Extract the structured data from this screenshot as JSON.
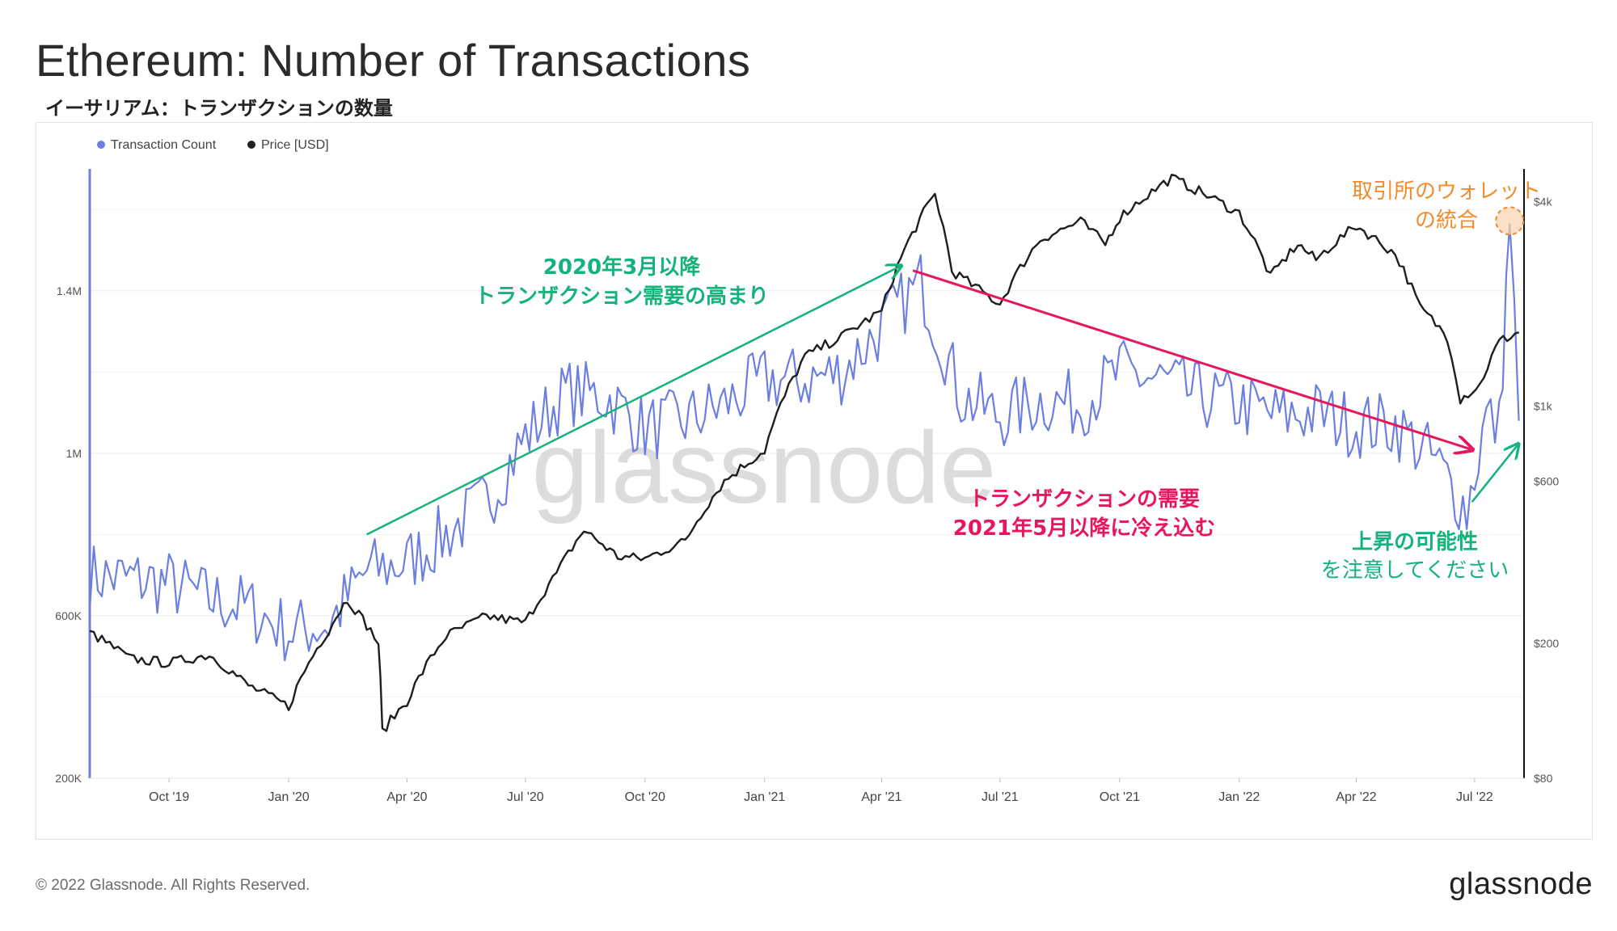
{
  "header": {
    "title": "Ethereum: Number of Transactions",
    "subtitle": "イーサリアム：トランザクションの数量"
  },
  "footer": {
    "copyright": "© 2022 Glassnode. All Rights Reserved.",
    "logo": "glassnode"
  },
  "watermark": "glassnode",
  "colors": {
    "transaction_series": "#6b7fe0",
    "price_series": "#1e1e1e",
    "uptrend_annotation": "#14b37a",
    "downtrend_annotation": "#e8175d",
    "consolidation_annotation": "#f28a2e"
  },
  "chart_data": {
    "type": "line",
    "title": "Ethereum: Number of Transactions",
    "legend": {
      "placement": "top-left",
      "entries": [
        "Transaction Count",
        "Price [USD]"
      ]
    },
    "x_axis": {
      "range": [
        "2019-08-01",
        "2022-08-08"
      ],
      "tick_labels": [
        "Oct '19",
        "Jan '20",
        "Apr '20",
        "Jul '20",
        "Oct '20",
        "Jan '21",
        "Apr '21",
        "Jul '21",
        "Oct '21",
        "Jan '22",
        "Apr '22",
        "Jul '22"
      ],
      "tick_dates": [
        "2019-10-01",
        "2020-01-01",
        "2020-04-01",
        "2020-07-01",
        "2020-10-01",
        "2021-01-01",
        "2021-04-01",
        "2021-07-01",
        "2021-10-01",
        "2022-01-01",
        "2022-04-01",
        "2022-07-01"
      ]
    },
    "y_left": {
      "scale": "linear",
      "range": [
        200000,
        1700000
      ],
      "ticks": [
        200000,
        600000,
        1000000,
        1400000
      ],
      "tick_labels": [
        "200K",
        "600K",
        "1M",
        "1.4M"
      ]
    },
    "y_right": {
      "scale": "log",
      "range": [
        80,
        5000
      ],
      "ticks": [
        80,
        200,
        600,
        1000,
        4000
      ],
      "tick_labels": [
        "$80",
        "$200",
        "$600",
        "$1k",
        "$4k"
      ]
    },
    "grid": true,
    "series": [
      {
        "name": "Transaction Count",
        "axis": "left",
        "points": [
          [
            "2019-08-01",
            700000
          ],
          [
            "2019-09-01",
            690000
          ],
          [
            "2019-10-01",
            680000
          ],
          [
            "2019-11-01",
            640000
          ],
          [
            "2019-12-01",
            620000
          ],
          [
            "2020-01-01",
            560000
          ],
          [
            "2020-02-01",
            580000
          ],
          [
            "2020-03-01",
            710000
          ],
          [
            "2020-04-01",
            730000
          ],
          [
            "2020-05-01",
            800000
          ],
          [
            "2020-06-01",
            880000
          ],
          [
            "2020-07-01",
            1040000
          ],
          [
            "2020-08-01",
            1150000
          ],
          [
            "2020-09-01",
            1140000
          ],
          [
            "2020-10-01",
            1060000
          ],
          [
            "2020-11-01",
            1080000
          ],
          [
            "2020-12-01",
            1120000
          ],
          [
            "2021-01-01",
            1180000
          ],
          [
            "2021-02-01",
            1180000
          ],
          [
            "2021-03-01",
            1200000
          ],
          [
            "2021-04-01",
            1310000
          ],
          [
            "2021-05-01",
            1420000
          ],
          [
            "2021-06-01",
            1140000
          ],
          [
            "2021-07-01",
            1090000
          ],
          [
            "2021-08-01",
            1130000
          ],
          [
            "2021-09-01",
            1120000
          ],
          [
            "2021-10-01",
            1200000
          ],
          [
            "2021-11-01",
            1180000
          ],
          [
            "2021-12-01",
            1140000
          ],
          [
            "2022-01-01",
            1120000
          ],
          [
            "2022-02-01",
            1090000
          ],
          [
            "2022-03-01",
            1100000
          ],
          [
            "2022-04-01",
            1070000
          ],
          [
            "2022-05-01",
            1070000
          ],
          [
            "2022-06-01",
            980000
          ],
          [
            "2022-06-25",
            860000
          ],
          [
            "2022-07-10",
            1090000
          ],
          [
            "2022-07-20",
            1060000
          ],
          [
            "2022-07-28",
            1580000
          ],
          [
            "2022-08-04",
            1080000
          ]
        ]
      },
      {
        "name": "Price [USD]",
        "axis": "right",
        "points": [
          [
            "2019-08-01",
            215
          ],
          [
            "2019-09-01",
            180
          ],
          [
            "2019-10-01",
            175
          ],
          [
            "2019-11-01",
            185
          ],
          [
            "2019-12-01",
            150
          ],
          [
            "2020-01-01",
            130
          ],
          [
            "2020-02-01",
            220
          ],
          [
            "2020-02-15",
            270
          ],
          [
            "2020-03-10",
            200
          ],
          [
            "2020-03-13",
            110
          ],
          [
            "2020-04-01",
            135
          ],
          [
            "2020-05-01",
            210
          ],
          [
            "2020-06-01",
            240
          ],
          [
            "2020-07-01",
            230
          ],
          [
            "2020-07-25",
            320
          ],
          [
            "2020-08-15",
            430
          ],
          [
            "2020-09-10",
            360
          ],
          [
            "2020-10-01",
            355
          ],
          [
            "2020-11-01",
            400
          ],
          [
            "2020-12-01",
            600
          ],
          [
            "2021-01-01",
            740
          ],
          [
            "2021-02-01",
            1400
          ],
          [
            "2021-03-01",
            1600
          ],
          [
            "2021-04-01",
            1900
          ],
          [
            "2021-05-12",
            4200
          ],
          [
            "2021-05-25",
            2500
          ],
          [
            "2021-06-15",
            2200
          ],
          [
            "2021-07-01",
            2000
          ],
          [
            "2021-08-01",
            3100
          ],
          [
            "2021-09-01",
            3500
          ],
          [
            "2021-09-20",
            3000
          ],
          [
            "2021-10-01",
            3600
          ],
          [
            "2021-11-10",
            4700
          ],
          [
            "2021-12-01",
            4300
          ],
          [
            "2022-01-01",
            3700
          ],
          [
            "2022-01-25",
            2400
          ],
          [
            "2022-02-15",
            3000
          ],
          [
            "2022-03-01",
            2700
          ],
          [
            "2022-04-01",
            3400
          ],
          [
            "2022-05-01",
            2800
          ],
          [
            "2022-05-20",
            1950
          ],
          [
            "2022-06-10",
            1600
          ],
          [
            "2022-06-20",
            1050
          ],
          [
            "2022-07-05",
            1150
          ],
          [
            "2022-07-20",
            1550
          ],
          [
            "2022-08-04",
            1650
          ]
        ]
      }
    ],
    "annotations": [
      {
        "id": "uptrend",
        "lines": [
          "2020年3月以降",
          "トランザクション需要の高まり"
        ],
        "arrow": [
          [
            "2020-03-01",
            800000
          ],
          [
            "2021-04-15",
            1460000
          ]
        ]
      },
      {
        "id": "downtrend",
        "lines": [
          "トランザクションの需要",
          "2021年5月以降に冷え込む"
        ],
        "arrow": [
          [
            "2021-04-25",
            1450000
          ],
          [
            "2022-06-28",
            1010000
          ]
        ]
      },
      {
        "id": "consolidation",
        "lines": [
          "取引所のウォレット",
          "の統合"
        ]
      },
      {
        "id": "upside",
        "lines": [
          "上昇の可能性",
          "を注意してください"
        ],
        "arrow": [
          [
            "2022-06-29",
            880000
          ],
          [
            "2022-08-03",
            1020000
          ]
        ]
      }
    ]
  }
}
